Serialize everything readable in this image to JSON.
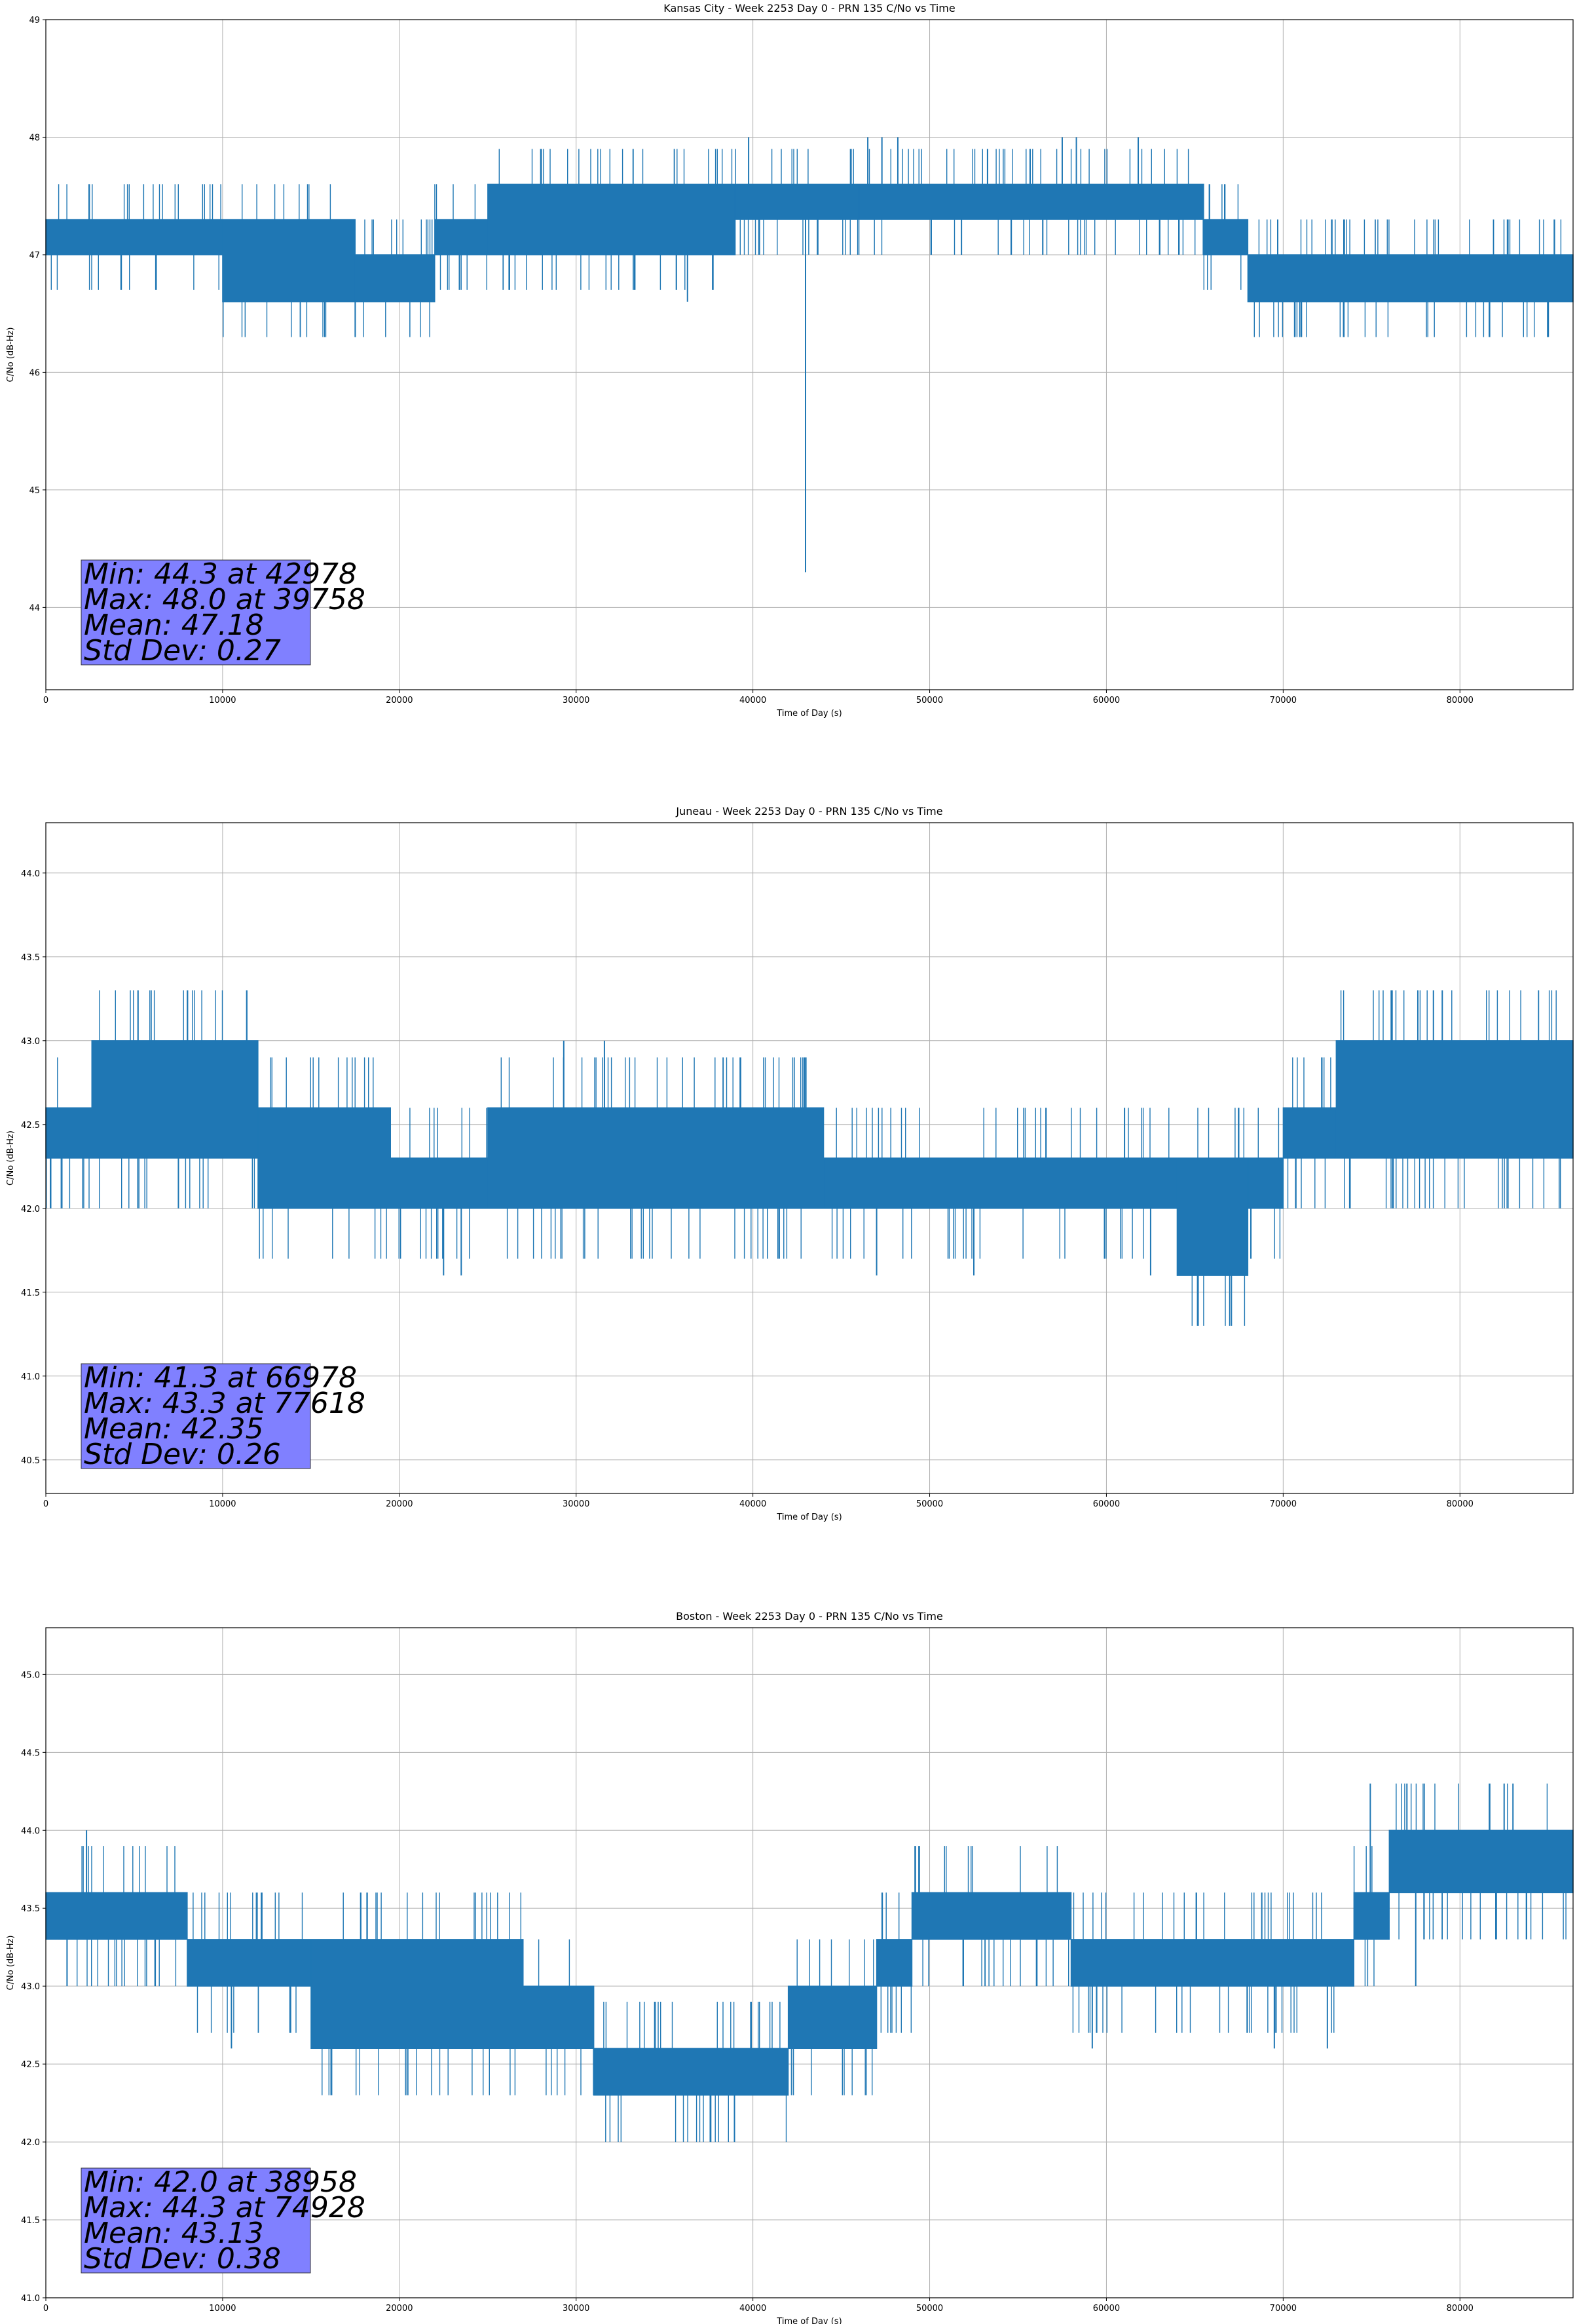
{
  "chart_data": [
    {
      "type": "line",
      "title": "Kansas City - Week 2253 Day 0 - PRN 135 C/No vs Time",
      "xlabel": "Time of Day (s)",
      "ylabel": "C/No (dB-Hz)",
      "xlim": [
        0,
        86400
      ],
      "ylim": [
        43.3,
        49.0
      ],
      "xticks": [
        0,
        10000,
        20000,
        30000,
        40000,
        50000,
        60000,
        70000,
        80000
      ],
      "yticks": [
        44,
        45,
        46,
        47,
        48,
        49
      ],
      "ytick_decimals": 0,
      "grid": true,
      "color": "#1f77b4",
      "quant": 0.3,
      "bands": [
        {
          "x": [
            0,
            10000
          ],
          "lo": 47.0,
          "hi": 47.3
        },
        {
          "x": [
            10000,
            17500
          ],
          "lo": 46.6,
          "hi": 47.3
        },
        {
          "x": [
            17500,
            22000
          ],
          "lo": 46.6,
          "hi": 47.0
        },
        {
          "x": [
            22000,
            25000
          ],
          "lo": 47.0,
          "hi": 47.3
        },
        {
          "x": [
            25000,
            39000
          ],
          "lo": 47.0,
          "hi": 47.6
        },
        {
          "x": [
            39000,
            46000
          ],
          "lo": 47.3,
          "hi": 47.6
        },
        {
          "x": [
            46000,
            65500
          ],
          "lo": 47.3,
          "hi": 47.6
        },
        {
          "x": [
            65500,
            68000
          ],
          "lo": 47.0,
          "hi": 47.3
        },
        {
          "x": [
            68000,
            86400
          ],
          "lo": 46.6,
          "hi": 47.0
        }
      ],
      "events": [
        {
          "x": 39758,
          "y": 48.0
        },
        {
          "x": 42978,
          "y": 44.3
        },
        {
          "x": 46500,
          "y": 48.0
        },
        {
          "x": 47300,
          "y": 48.0
        },
        {
          "x": 48200,
          "y": 48.0
        },
        {
          "x": 57500,
          "y": 48.0
        },
        {
          "x": 58300,
          "y": 48.0
        },
        {
          "x": 61800,
          "y": 48.0
        },
        {
          "x": 17500,
          "y": 46.3
        },
        {
          "x": 36300,
          "y": 46.6
        },
        {
          "x": 85000,
          "y": 46.3
        },
        {
          "x": 51800,
          "y": 47.0
        }
      ],
      "stats": {
        "min_line": "Min: 44.3 at 42978",
        "max_line": "Max: 48.0 at 39758",
        "mean_line": "Mean: 47.18",
        "std_line": "Std Dev: 0.27"
      }
    },
    {
      "type": "line",
      "title": "Juneau - Week 2253 Day 0 - PRN 135 C/No vs Time",
      "xlabel": "Time of Day (s)",
      "ylabel": "C/No (dB-Hz)",
      "xlim": [
        0,
        86400
      ],
      "ylim": [
        40.3,
        44.3
      ],
      "xticks": [
        0,
        10000,
        20000,
        30000,
        40000,
        50000,
        60000,
        70000,
        80000
      ],
      "yticks": [
        40.5,
        41.0,
        41.5,
        42.0,
        42.5,
        43.0,
        43.5,
        44.0
      ],
      "ytick_decimals": 1,
      "grid": true,
      "color": "#1f77b4",
      "quant": 0.3,
      "bands": [
        {
          "x": [
            0,
            2600
          ],
          "lo": 42.3,
          "hi": 42.6
        },
        {
          "x": [
            2600,
            12000
          ],
          "lo": 42.3,
          "hi": 43.0
        },
        {
          "x": [
            12000,
            19500
          ],
          "lo": 42.0,
          "hi": 42.6
        },
        {
          "x": [
            19500,
            25000
          ],
          "lo": 42.0,
          "hi": 42.3
        },
        {
          "x": [
            25000,
            44000
          ],
          "lo": 42.0,
          "hi": 42.6
        },
        {
          "x": [
            44000,
            64000
          ],
          "lo": 42.0,
          "hi": 42.3
        },
        {
          "x": [
            64000,
            68000
          ],
          "lo": 41.6,
          "hi": 42.3
        },
        {
          "x": [
            68000,
            70000
          ],
          "lo": 42.0,
          "hi": 42.3
        },
        {
          "x": [
            70000,
            73000
          ],
          "lo": 42.3,
          "hi": 42.6
        },
        {
          "x": [
            73000,
            86400
          ],
          "lo": 42.3,
          "hi": 43.0
        }
      ],
      "events": [
        {
          "x": 66978,
          "y": 41.3
        },
        {
          "x": 77618,
          "y": 43.3
        },
        {
          "x": 78500,
          "y": 43.3
        },
        {
          "x": 79000,
          "y": 43.3
        },
        {
          "x": 29300,
          "y": 43.0
        },
        {
          "x": 31600,
          "y": 43.0
        },
        {
          "x": 7500,
          "y": 42.0
        },
        {
          "x": 22500,
          "y": 41.6
        },
        {
          "x": 23500,
          "y": 41.6
        },
        {
          "x": 47000,
          "y": 41.6
        },
        {
          "x": 52500,
          "y": 41.6
        },
        {
          "x": 62500,
          "y": 41.6
        }
      ],
      "stats": {
        "min_line": "Min: 41.3 at 66978",
        "max_line": "Max: 43.3 at 77618",
        "mean_line": "Mean: 42.35",
        "std_line": "Std Dev: 0.26"
      }
    },
    {
      "type": "line",
      "title": "Boston - Week 2253 Day 0 - PRN 135 C/No vs Time",
      "xlabel": "Time of Day (s)",
      "ylabel": "C/No (dB-Hz)",
      "xlim": [
        0,
        86400
      ],
      "ylim": [
        41.0,
        45.3
      ],
      "xticks": [
        0,
        10000,
        20000,
        30000,
        40000,
        50000,
        60000,
        70000,
        80000
      ],
      "yticks": [
        41.0,
        41.5,
        42.0,
        42.5,
        43.0,
        43.5,
        44.0,
        44.5,
        45.0
      ],
      "ytick_decimals": 1,
      "grid": true,
      "color": "#1f77b4",
      "quant": 0.3,
      "bands": [
        {
          "x": [
            0,
            8000
          ],
          "lo": 43.3,
          "hi": 43.6
        },
        {
          "x": [
            8000,
            15000
          ],
          "lo": 43.0,
          "hi": 43.3
        },
        {
          "x": [
            15000,
            27000
          ],
          "lo": 42.6,
          "hi": 43.3
        },
        {
          "x": [
            27000,
            31000
          ],
          "lo": 42.6,
          "hi": 43.0
        },
        {
          "x": [
            31000,
            42000
          ],
          "lo": 42.3,
          "hi": 42.6
        },
        {
          "x": [
            42000,
            47000
          ],
          "lo": 42.6,
          "hi": 43.0
        },
        {
          "x": [
            47000,
            49000
          ],
          "lo": 43.0,
          "hi": 43.3
        },
        {
          "x": [
            49000,
            58000
          ],
          "lo": 43.3,
          "hi": 43.6
        },
        {
          "x": [
            58000,
            74000
          ],
          "lo": 43.0,
          "hi": 43.3
        },
        {
          "x": [
            74000,
            76000
          ],
          "lo": 43.3,
          "hi": 43.6
        },
        {
          "x": [
            76000,
            86400
          ],
          "lo": 43.6,
          "hi": 44.0
        }
      ],
      "events": [
        {
          "x": 38958,
          "y": 42.0
        },
        {
          "x": 74928,
          "y": 44.3
        },
        {
          "x": 77000,
          "y": 44.3
        },
        {
          "x": 82500,
          "y": 44.3
        },
        {
          "x": 83000,
          "y": 44.3
        },
        {
          "x": 2300,
          "y": 44.0
        },
        {
          "x": 1200,
          "y": 43.0
        },
        {
          "x": 10500,
          "y": 42.6
        },
        {
          "x": 59200,
          "y": 42.6
        },
        {
          "x": 69500,
          "y": 42.6
        },
        {
          "x": 72500,
          "y": 42.6
        },
        {
          "x": 77500,
          "y": 43.0
        }
      ],
      "stats": {
        "min_line": "Min: 42.0 at 38958",
        "max_line": "Max: 44.3 at 74928",
        "mean_line": "Mean: 43.13",
        "std_line": "Std Dev: 0.38"
      }
    }
  ]
}
